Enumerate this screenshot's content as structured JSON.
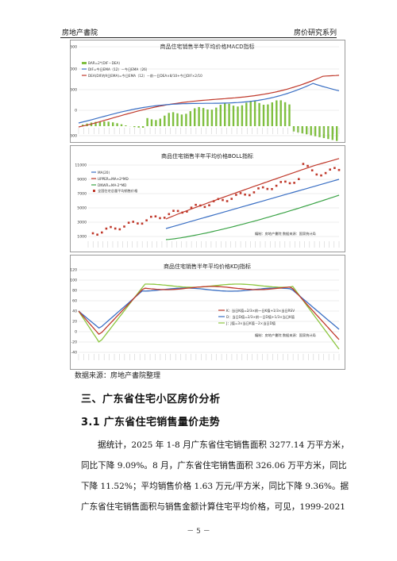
{
  "header": {
    "left": "房地产書院",
    "right": "房价研究系列"
  },
  "charts": [
    {
      "title": "商品住宅销售半年平均价格MACD指标",
      "y_ticks": [
        "1,500",
        "1,000",
        "500",
        "0",
        "-500"
      ],
      "legend": [
        "BAR=2*(DIF－DEA)",
        "DIF=今日EMA（12）－今日EMA（26）",
        "DEA(DIF的9日EMA)=前一日DEA×8/10+今日DIF×2/10",
        "DEA(DIF的9日EMA)=今日EMA（12）－前一日DEA×8/10+今日DIF×2/10"
      ],
      "colors": {
        "bar": "#7fbf3f",
        "dif": "#3a6fc4",
        "dea": "#c0392b"
      }
    },
    {
      "title": "商品住宅销售半年平均价格BOLL指标",
      "y_ticks": [
        "11000",
        "9000",
        "7000",
        "5000",
        "3000",
        "1000"
      ],
      "legend": [
        "MA(20)",
        "UPPER=MA+2*MD",
        "DNWR=MA-2*MD",
        "全国住宅总量平均销售价格"
      ],
      "note": "编制：房地产書院    数据来源：国家统计局",
      "colors": {
        "ma": "#3a6fc4",
        "upper": "#c0392b",
        "dn": "#3aa346",
        "price": "#c0392b"
      }
    },
    {
      "title": "商品住宅销售半年平均价格KDJ指标",
      "y_ticks": [
        "120",
        "100",
        "80",
        "60",
        "40",
        "20",
        "0",
        "-20",
        "-40"
      ],
      "legend": [
        "K：当日K值=2/3×前一日K值+1/3×当日RSV",
        "D：当日D值=2/3×前一日D值+1/3×当日K值",
        "J：J值=3×当日K值－2×当日D值"
      ],
      "note": "编制：房地产書院    数据来源：国家统计局",
      "colors": {
        "k": "#c0392b",
        "d": "#3a6fc4",
        "j": "#8cc63f"
      }
    }
  ],
  "source": "数据来源：房地产書院整理",
  "section_title": "三、广东省住宅小区房价分析",
  "subsection_title": "3.1 广东省住宅销售量价走势",
  "paragraph_lines": [
    "据统计，2025 年 1-8 月广东省住宅销售面积 3277.14 万平方米，",
    "同比下降 9.09%。8 月，广东省住宅销售面积 326.06 万平方米，同比",
    "下降 11.52%；平均销售价格 1.63 万元/平方米，同比下降 9.36%。据",
    "广东省住宅销售面积与销售金额计算住宅平均价格，可见，1999-2021"
  ],
  "page_number": "－ 5 －"
}
